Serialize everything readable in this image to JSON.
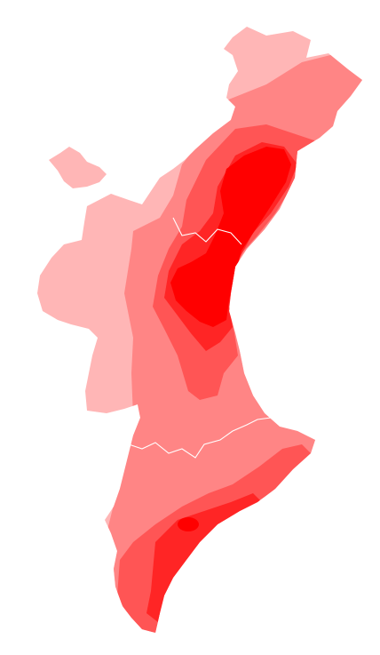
{
  "map": {
    "legend_levels": [
      {
        "level": 1,
        "color": "#ffb6b6"
      },
      {
        "level": 2,
        "color": "#ff8585"
      },
      {
        "level": 3,
        "color": "#ff5555"
      },
      {
        "level": 4,
        "color": "#ff2525"
      },
      {
        "level": 5,
        "color": "#ff0000"
      }
    ],
    "border_color": "#ffffff",
    "background": "#ffffff"
  }
}
